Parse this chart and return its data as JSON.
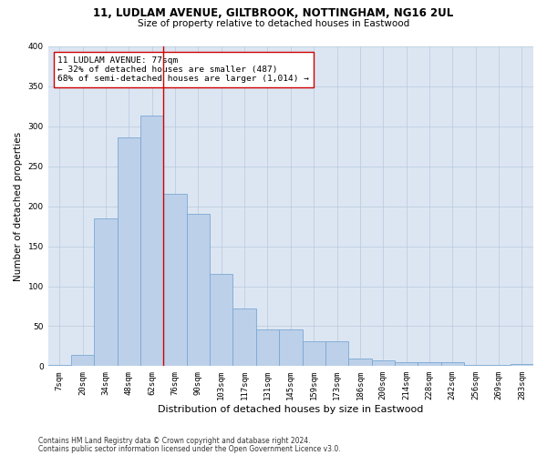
{
  "title1": "11, LUDLAM AVENUE, GILTBROOK, NOTTINGHAM, NG16 2UL",
  "title2": "Size of property relative to detached houses in Eastwood",
  "xlabel": "Distribution of detached houses by size in Eastwood",
  "ylabel": "Number of detached properties",
  "categories": [
    "7sqm",
    "20sqm",
    "34sqm",
    "48sqm",
    "62sqm",
    "76sqm",
    "90sqm",
    "103sqm",
    "117sqm",
    "131sqm",
    "145sqm",
    "159sqm",
    "173sqm",
    "186sqm",
    "200sqm",
    "214sqm",
    "228sqm",
    "242sqm",
    "256sqm",
    "269sqm",
    "283sqm"
  ],
  "values": [
    2,
    14,
    185,
    286,
    314,
    215,
    190,
    115,
    72,
    46,
    46,
    31,
    31,
    10,
    7,
    5,
    5,
    5,
    1,
    1,
    3
  ],
  "bar_color": "#bdd0e9",
  "bar_edge_color": "#7aa8d4",
  "vline_bin_index": 5,
  "vline_color": "#cc0000",
  "annotation_text": "11 LUDLAM AVENUE: 77sqm\n← 32% of detached houses are smaller (487)\n68% of semi-detached houses are larger (1,014) →",
  "annotation_box_color": "#ffffff",
  "annotation_box_edge": "#cc0000",
  "footnote1": "Contains HM Land Registry data © Crown copyright and database right 2024.",
  "footnote2": "Contains public sector information licensed under the Open Government Licence v3.0.",
  "bg_color": "#ffffff",
  "axes_bg_color": "#dce6f2",
  "grid_color": "#b8c8dc",
  "ylim": [
    0,
    400
  ],
  "yticks": [
    0,
    50,
    100,
    150,
    200,
    250,
    300,
    350,
    400
  ],
  "title1_fontsize": 8.5,
  "title2_fontsize": 7.5,
  "xlabel_fontsize": 8.0,
  "ylabel_fontsize": 7.5,
  "tick_fontsize": 6.5,
  "annot_fontsize": 6.8,
  "footnote_fontsize": 5.5
}
